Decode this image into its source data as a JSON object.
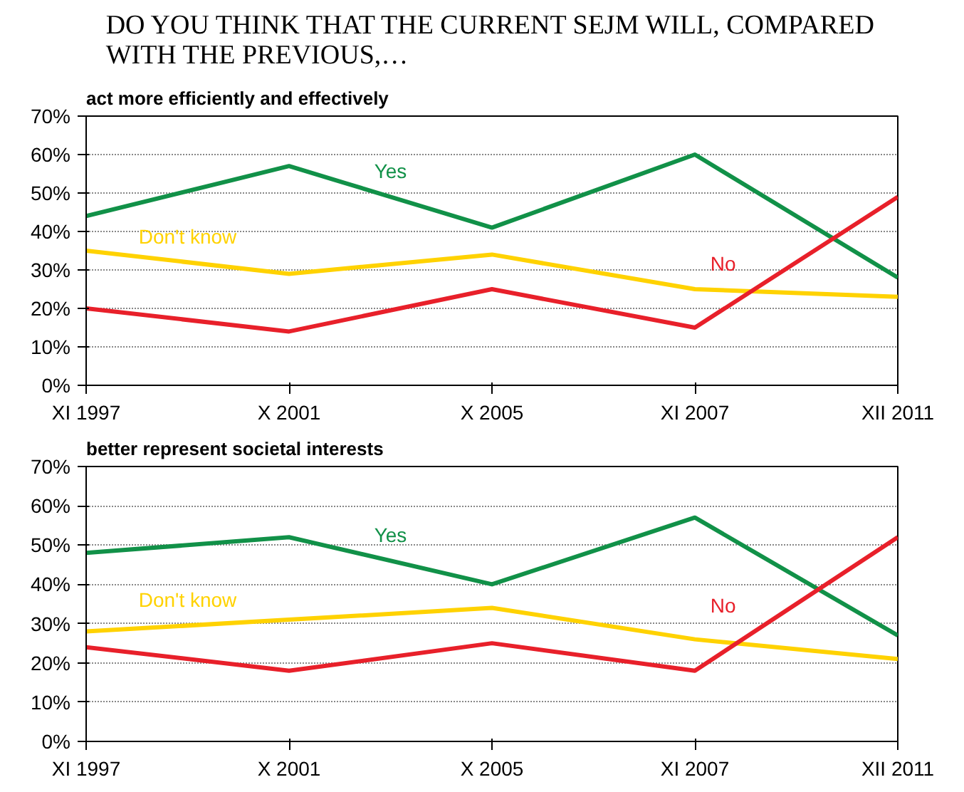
{
  "chart_data": [
    {
      "type": "line",
      "title": "DO YOU THINK THAT THE CURRENT SEJM WILL, COMPARED\nWITH THE PREVIOUS,…",
      "subtitle": "act more efficiently and effectively",
      "categories": [
        "XI 1997",
        "X 2001",
        "X 2005",
        "XI 2007",
        "XII 2011"
      ],
      "series": [
        {
          "name": "Yes",
          "color": "#119148",
          "values": [
            44,
            57,
            41,
            60,
            28
          ]
        },
        {
          "name": "Don't know",
          "color": "#ffd200",
          "values": [
            35,
            29,
            34,
            25,
            23
          ]
        },
        {
          "name": "No",
          "color": "#e8202a",
          "values": [
            20,
            14,
            25,
            15,
            49
          ]
        }
      ],
      "ylim": [
        0,
        70
      ],
      "yticks": [
        {
          "value": 0,
          "label": "0%"
        },
        {
          "value": 10,
          "label": "10%"
        },
        {
          "value": 20,
          "label": "20%"
        },
        {
          "value": 30,
          "label": "30%"
        },
        {
          "value": 40,
          "label": "40%"
        },
        {
          "value": 50,
          "label": "50%"
        },
        {
          "value": 60,
          "label": "60%"
        },
        {
          "value": 70,
          "label": "70%"
        }
      ],
      "grid": "y",
      "legend": false
    },
    {
      "type": "line",
      "subtitle": "better represent societal interests",
      "categories": [
        "XI 1997",
        "X 2001",
        "X 2005",
        "XI 2007",
        "XII 2011"
      ],
      "series": [
        {
          "name": "Yes",
          "color": "#119148",
          "values": [
            48,
            52,
            40,
            57,
            27
          ]
        },
        {
          "name": "Don't know",
          "color": "#ffd200",
          "values": [
            28,
            31,
            34,
            26,
            21
          ]
        },
        {
          "name": "No",
          "color": "#e8202a",
          "values": [
            24,
            18,
            25,
            18,
            52
          ]
        }
      ],
      "ylim": [
        0,
        70
      ],
      "yticks": [
        {
          "value": 0,
          "label": "0%"
        },
        {
          "value": 10,
          "label": "10%"
        },
        {
          "value": 20,
          "label": "20%"
        },
        {
          "value": 30,
          "label": "30%"
        },
        {
          "value": 40,
          "label": "40%"
        },
        {
          "value": 50,
          "label": "50%"
        },
        {
          "value": 60,
          "label": "60%"
        },
        {
          "value": 70,
          "label": "70%"
        }
      ],
      "grid": "y",
      "legend": false
    }
  ]
}
